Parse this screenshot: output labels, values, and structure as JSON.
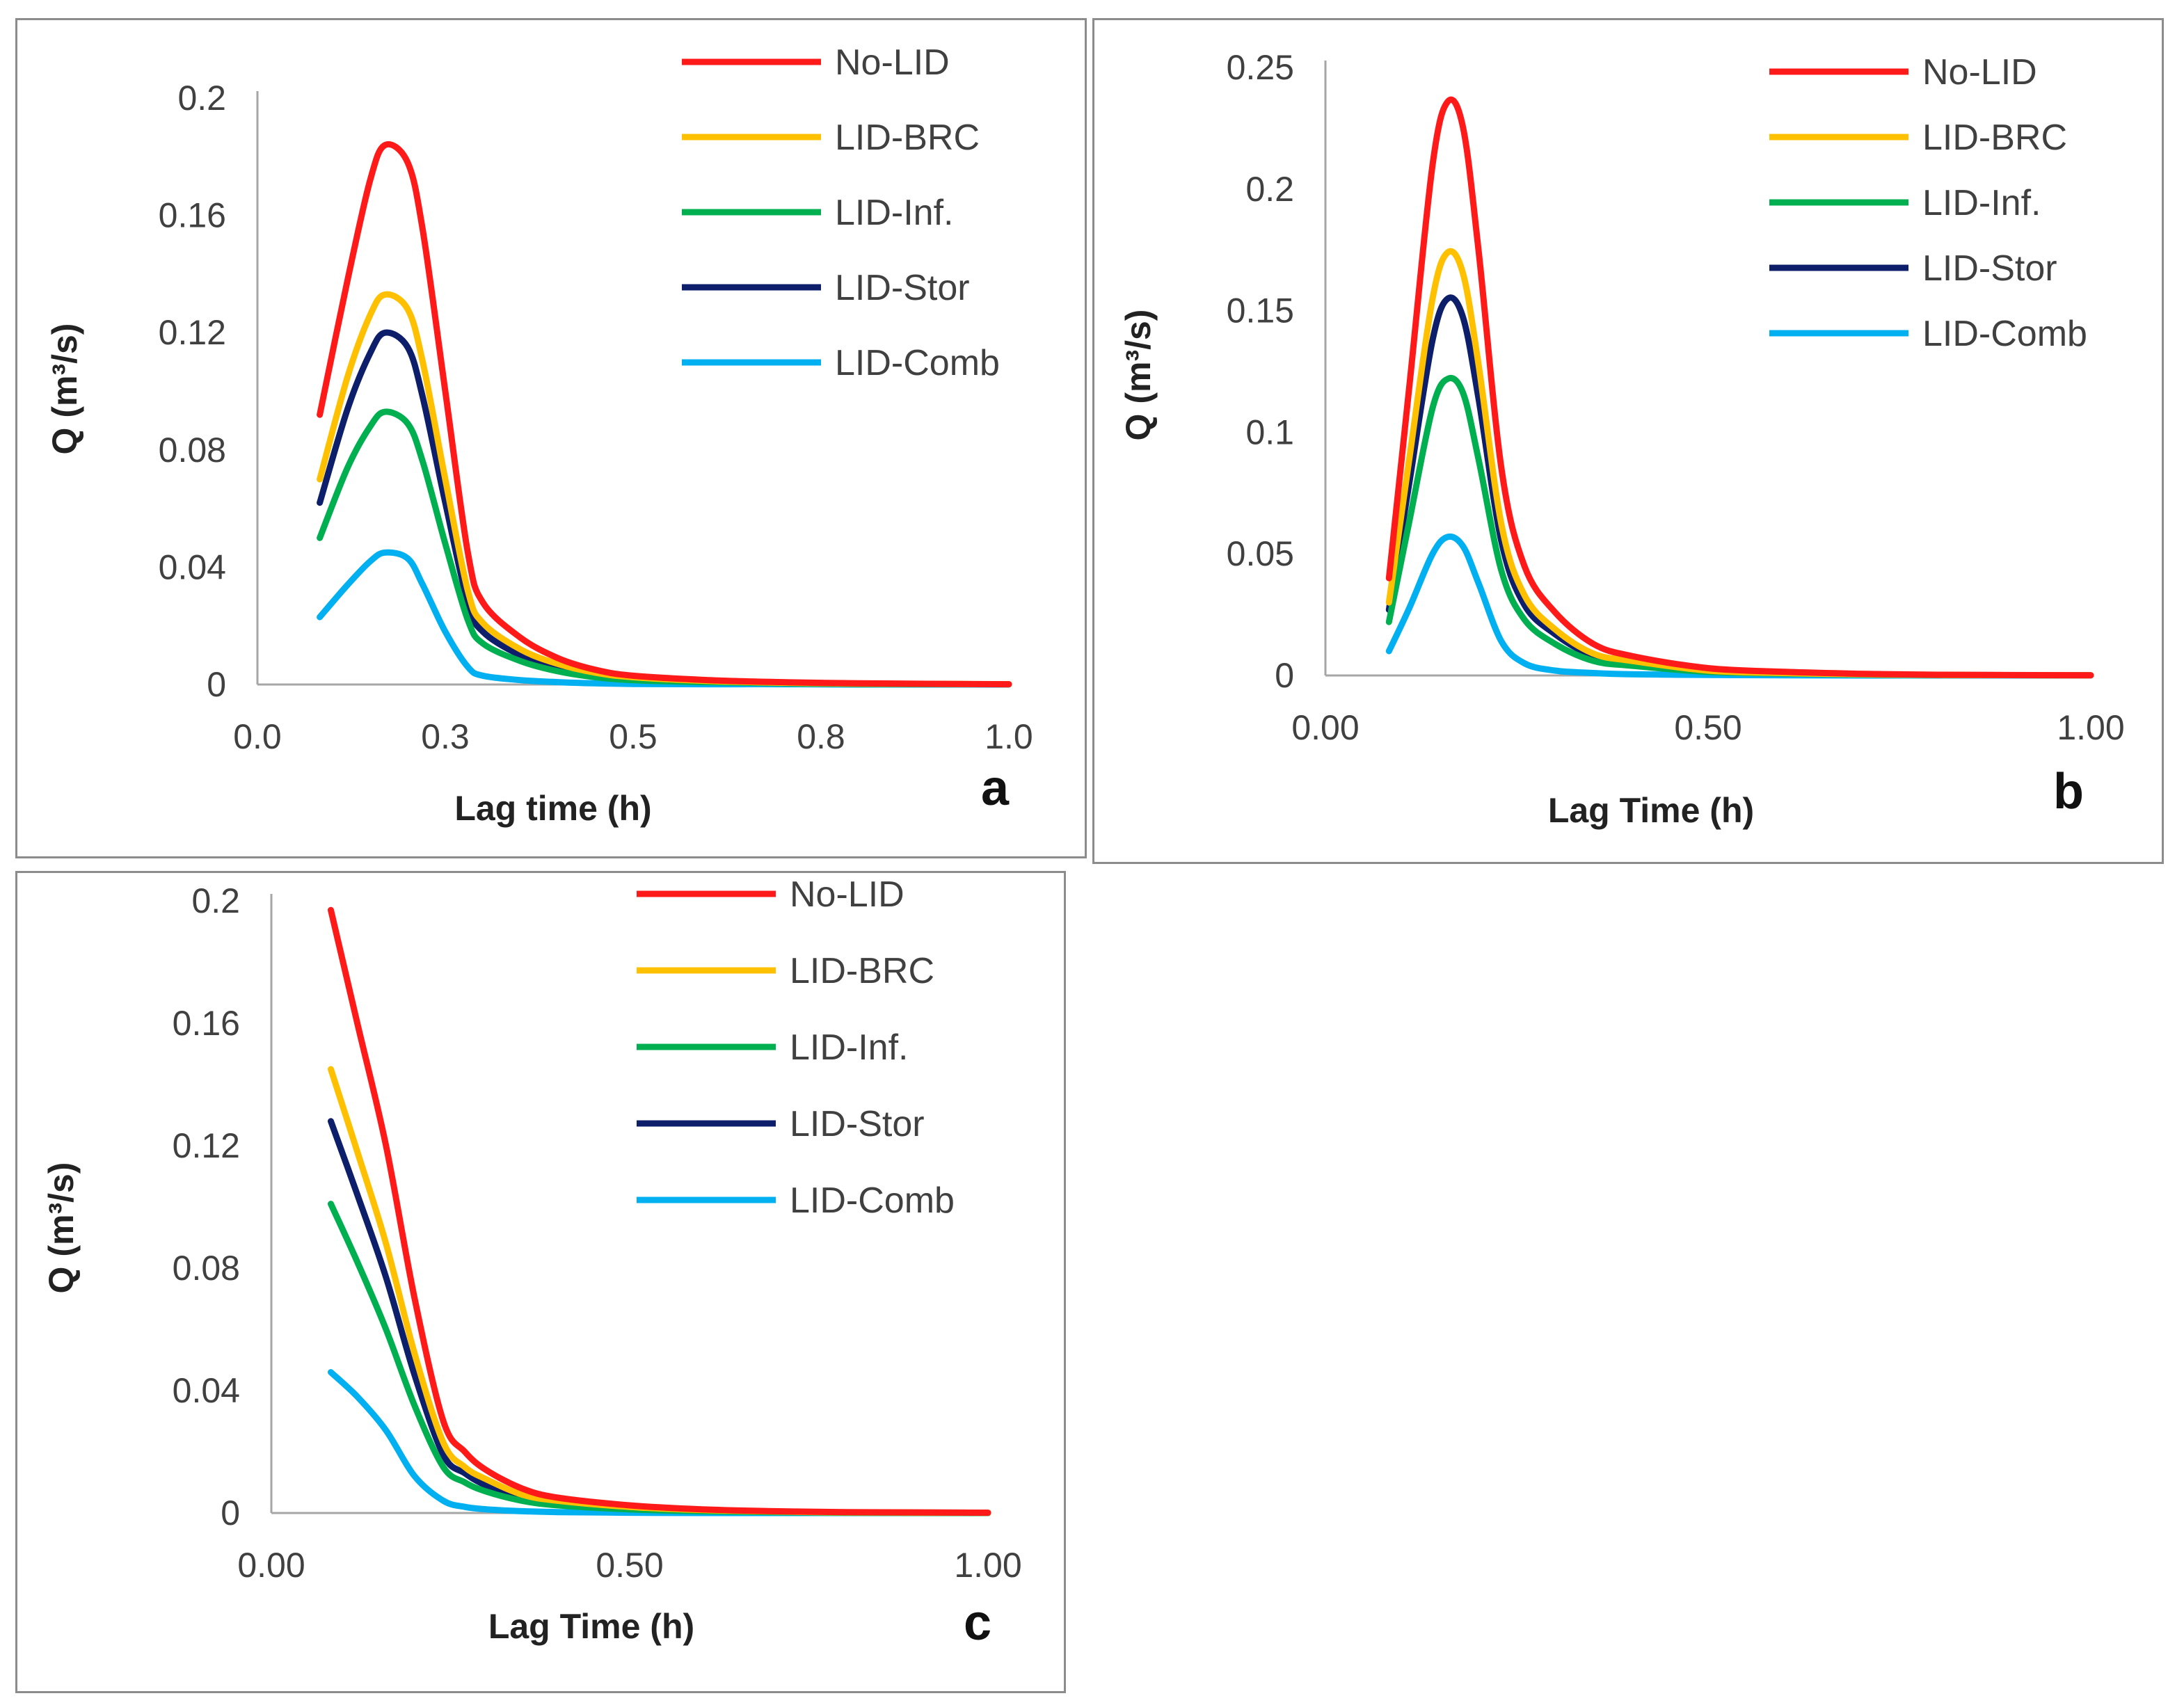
{
  "chart_data": [
    {
      "type": "line",
      "panel_label": "a",
      "xlabel": "Lag time (h)",
      "ylabel": "Q (m³/s)",
      "xlim": [
        0,
        1.0
      ],
      "ylim": [
        0,
        0.2
      ],
      "x_ticks": [
        0,
        0.25,
        0.5,
        0.75,
        1.0
      ],
      "x_tick_labels": [
        "0.0",
        "0.3",
        "0.5",
        "0.8",
        "1.0"
      ],
      "y_ticks": [
        0,
        0.04,
        0.08,
        0.12,
        0.16,
        0.2
      ],
      "y_tick_labels": [
        "0",
        "0.04",
        "0.08",
        "0.12",
        "0.16",
        "0.2"
      ],
      "grid": false,
      "legend_position": "top-right",
      "series": [
        {
          "name": "No-LID",
          "color": "#ff1a1a",
          "x": [
            0.083,
            0.12,
            0.15,
            0.17,
            0.2,
            0.22,
            0.25,
            0.28,
            0.3,
            0.35,
            0.4,
            0.45,
            0.5,
            0.6,
            0.7,
            0.8,
            1.0
          ],
          "y": [
            0.092,
            0.138,
            0.172,
            0.184,
            0.178,
            0.155,
            0.1,
            0.045,
            0.028,
            0.016,
            0.009,
            0.005,
            0.003,
            0.0015,
            0.0008,
            0.0004,
            0.0001
          ]
        },
        {
          "name": "LID-BRC",
          "color": "#ffc000",
          "x": [
            0.083,
            0.12,
            0.15,
            0.17,
            0.2,
            0.22,
            0.25,
            0.28,
            0.3,
            0.35,
            0.4,
            0.45,
            0.5,
            0.6,
            0.7,
            0.8,
            1.0
          ],
          "y": [
            0.07,
            0.105,
            0.126,
            0.133,
            0.128,
            0.11,
            0.07,
            0.032,
            0.021,
            0.012,
            0.007,
            0.004,
            0.0025,
            0.0012,
            0.0006,
            0.0003,
            0.0001
          ]
        },
        {
          "name": "LID-Inf.",
          "color": "#00b050",
          "x": [
            0.083,
            0.12,
            0.15,
            0.17,
            0.2,
            0.22,
            0.25,
            0.28,
            0.3,
            0.35,
            0.4,
            0.45,
            0.5,
            0.6,
            0.7,
            0.8,
            1.0
          ],
          "y": [
            0.05,
            0.074,
            0.088,
            0.093,
            0.089,
            0.076,
            0.048,
            0.022,
            0.014,
            0.008,
            0.0045,
            0.0025,
            0.0015,
            0.0008,
            0.0004,
            0.0002,
            0.0001
          ]
        },
        {
          "name": "LID-Stor",
          "color": "#0d1f6b",
          "x": [
            0.083,
            0.12,
            0.15,
            0.17,
            0.2,
            0.22,
            0.25,
            0.28,
            0.3,
            0.35,
            0.4,
            0.45,
            0.5,
            0.6,
            0.7,
            0.8,
            1.0
          ],
          "y": [
            0.062,
            0.094,
            0.113,
            0.12,
            0.115,
            0.098,
            0.062,
            0.028,
            0.018,
            0.01,
            0.006,
            0.0035,
            0.002,
            0.001,
            0.0005,
            0.0002,
            0.0001
          ]
        },
        {
          "name": "LID-Comb",
          "color": "#00b0f0",
          "x": [
            0.083,
            0.12,
            0.15,
            0.17,
            0.2,
            0.22,
            0.25,
            0.28,
            0.3,
            0.35,
            0.4,
            0.45,
            0.5,
            0.6,
            0.7,
            0.8,
            1.0
          ],
          "y": [
            0.023,
            0.034,
            0.042,
            0.045,
            0.043,
            0.034,
            0.018,
            0.006,
            0.003,
            0.0015,
            0.0008,
            0.0004,
            0.0002,
            0.0001,
            0.0001,
            0.0,
            0.0
          ]
        }
      ]
    },
    {
      "type": "line",
      "panel_label": "b",
      "xlabel": "Lag Time (h)",
      "ylabel": "Q (m³/s)",
      "xlim": [
        0,
        1.0
      ],
      "ylim": [
        0,
        0.25
      ],
      "x_ticks": [
        0,
        0.5,
        1.0
      ],
      "x_tick_labels": [
        "0.00",
        "0.50",
        "1.00"
      ],
      "y_ticks": [
        0,
        0.05,
        0.1,
        0.15,
        0.2,
        0.25
      ],
      "y_tick_labels": [
        "0",
        "0.05",
        "0.1",
        "0.15",
        "0.2",
        "0.25"
      ],
      "grid": false,
      "legend_position": "top-right",
      "series": [
        {
          "name": "No-LID",
          "color": "#ff1a1a",
          "x": [
            0.083,
            0.11,
            0.14,
            0.16,
            0.18,
            0.2,
            0.23,
            0.26,
            0.3,
            0.35,
            0.4,
            0.5,
            0.6,
            0.7,
            0.8,
            1.0
          ],
          "y": [
            0.04,
            0.12,
            0.21,
            0.236,
            0.225,
            0.175,
            0.085,
            0.045,
            0.026,
            0.013,
            0.008,
            0.003,
            0.0015,
            0.0007,
            0.0003,
            0.0001
          ]
        },
        {
          "name": "LID-BRC",
          "color": "#ffc000",
          "x": [
            0.083,
            0.11,
            0.14,
            0.16,
            0.18,
            0.2,
            0.23,
            0.26,
            0.3,
            0.35,
            0.4,
            0.5,
            0.6,
            0.7,
            0.8,
            1.0
          ],
          "y": [
            0.03,
            0.09,
            0.155,
            0.174,
            0.165,
            0.128,
            0.062,
            0.033,
            0.019,
            0.009,
            0.006,
            0.002,
            0.001,
            0.0005,
            0.0002,
            0.0001
          ]
        },
        {
          "name": "LID-Inf.",
          "color": "#00b050",
          "x": [
            0.083,
            0.11,
            0.14,
            0.16,
            0.18,
            0.2,
            0.23,
            0.26,
            0.3,
            0.35,
            0.4,
            0.5,
            0.6,
            0.7,
            0.8,
            1.0
          ],
          "y": [
            0.022,
            0.064,
            0.11,
            0.122,
            0.116,
            0.089,
            0.043,
            0.023,
            0.013,
            0.006,
            0.004,
            0.0015,
            0.0008,
            0.0004,
            0.0002,
            0.0001
          ]
        },
        {
          "name": "LID-Stor",
          "color": "#0d1f6b",
          "x": [
            0.083,
            0.11,
            0.14,
            0.16,
            0.18,
            0.2,
            0.23,
            0.26,
            0.3,
            0.35,
            0.4,
            0.5,
            0.6,
            0.7,
            0.8,
            1.0
          ],
          "y": [
            0.027,
            0.08,
            0.138,
            0.155,
            0.147,
            0.114,
            0.055,
            0.029,
            0.017,
            0.008,
            0.005,
            0.002,
            0.001,
            0.0005,
            0.0002,
            0.0001
          ]
        },
        {
          "name": "LID-Comb",
          "color": "#00b0f0",
          "x": [
            0.083,
            0.11,
            0.14,
            0.16,
            0.18,
            0.2,
            0.23,
            0.26,
            0.3,
            0.35,
            0.4,
            0.5,
            0.6,
            0.7,
            0.8,
            1.0
          ],
          "y": [
            0.01,
            0.028,
            0.05,
            0.057,
            0.053,
            0.038,
            0.014,
            0.005,
            0.002,
            0.001,
            0.0005,
            0.0002,
            0.0001,
            0.0,
            0.0,
            0.0
          ]
        }
      ]
    },
    {
      "type": "line",
      "panel_label": "c",
      "xlabel": "Lag Time (h)",
      "ylabel": "Q (m³/s)",
      "xlim": [
        0,
        1.0
      ],
      "ylim": [
        0,
        0.2
      ],
      "x_ticks": [
        0,
        0.5,
        1.0
      ],
      "x_tick_labels": [
        "0.00",
        "0.50",
        "1.00"
      ],
      "y_ticks": [
        0,
        0.04,
        0.08,
        0.12,
        0.16,
        0.2
      ],
      "y_tick_labels": [
        "0",
        "0.04",
        "0.08",
        "0.12",
        "0.16",
        "0.2"
      ],
      "grid": false,
      "legend_position": "top-right",
      "series": [
        {
          "name": "No-LID",
          "color": "#ff1a1a",
          "x": [
            0.083,
            0.12,
            0.16,
            0.2,
            0.24,
            0.27,
            0.3,
            0.35,
            0.4,
            0.5,
            0.6,
            0.7,
            0.8,
            1.0
          ],
          "y": [
            0.197,
            0.16,
            0.12,
            0.07,
            0.03,
            0.02,
            0.014,
            0.008,
            0.005,
            0.0025,
            0.0012,
            0.0006,
            0.0003,
            0.0001
          ]
        },
        {
          "name": "LID-BRC",
          "color": "#ffc000",
          "x": [
            0.083,
            0.12,
            0.16,
            0.2,
            0.24,
            0.27,
            0.3,
            0.35,
            0.4,
            0.5,
            0.6,
            0.7,
            0.8,
            1.0
          ],
          "y": [
            0.145,
            0.118,
            0.088,
            0.052,
            0.023,
            0.015,
            0.011,
            0.006,
            0.004,
            0.002,
            0.001,
            0.0005,
            0.0002,
            0.0001
          ]
        },
        {
          "name": "LID-Inf.",
          "color": "#00b050",
          "x": [
            0.083,
            0.12,
            0.16,
            0.2,
            0.24,
            0.27,
            0.3,
            0.35,
            0.4,
            0.5,
            0.6,
            0.7,
            0.8,
            1.0
          ],
          "y": [
            0.101,
            0.082,
            0.06,
            0.035,
            0.015,
            0.01,
            0.007,
            0.004,
            0.0025,
            0.0012,
            0.0006,
            0.0003,
            0.0001,
            0.0
          ]
        },
        {
          "name": "LID-Stor",
          "color": "#0d1f6b",
          "x": [
            0.083,
            0.12,
            0.16,
            0.2,
            0.24,
            0.27,
            0.3,
            0.35,
            0.4,
            0.5,
            0.6,
            0.7,
            0.8,
            1.0
          ],
          "y": [
            0.128,
            0.104,
            0.077,
            0.045,
            0.019,
            0.013,
            0.009,
            0.005,
            0.003,
            0.0015,
            0.0008,
            0.0004,
            0.0002,
            0.0001
          ]
        },
        {
          "name": "LID-Comb",
          "color": "#00b0f0",
          "x": [
            0.083,
            0.12,
            0.16,
            0.2,
            0.24,
            0.27,
            0.3,
            0.35,
            0.4,
            0.5,
            0.6,
            0.7,
            0.8,
            1.0
          ],
          "y": [
            0.046,
            0.038,
            0.027,
            0.012,
            0.004,
            0.002,
            0.0012,
            0.0006,
            0.0003,
            0.0001,
            0.0,
            0.0,
            0.0,
            0.0
          ]
        }
      ]
    }
  ]
}
